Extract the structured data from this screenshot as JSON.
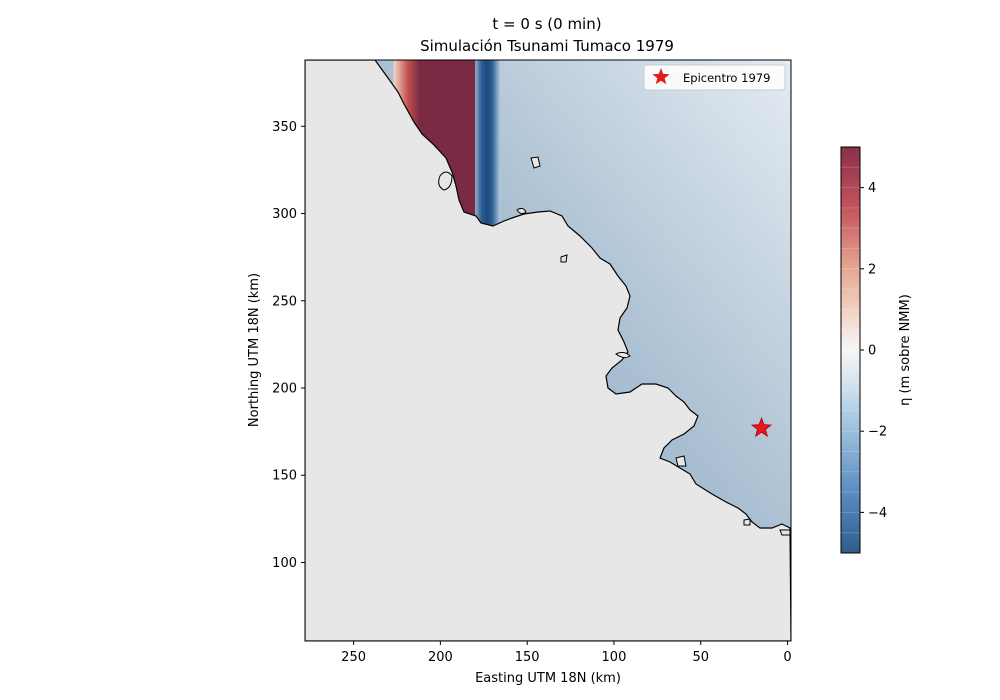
{
  "chart_data": {
    "type": "heatmap",
    "title": "t = 0 s (0 min)",
    "subtitle": "Simulación Tsunami Tumaco 1979",
    "xlabel": "Easting UTM 18N (km)",
    "ylabel": "Northing UTM 18N (km)",
    "xlim": [
      278,
      -2
    ],
    "ylim": [
      55,
      388
    ],
    "x_ticks": [
      250,
      200,
      150,
      100,
      50,
      0
    ],
    "y_ticks": [
      100,
      150,
      200,
      250,
      300,
      350
    ],
    "grid": false,
    "legend": {
      "position": "top-right",
      "entries": [
        "Epicentro 1979"
      ]
    },
    "epicenter": {
      "label": "Epicentro 1979",
      "x": 15,
      "y": 177,
      "color": "#e31a1c",
      "marker": "star"
    },
    "colorbar": {
      "label": "η (m sobre NMM)",
      "range": [
        -5,
        5
      ],
      "ticks": [
        -4,
        -2,
        0,
        2,
        4
      ],
      "tick_labels": [
        "−4",
        "−2",
        "0",
        "2",
        "4"
      ],
      "colormap": "RdBu_r"
    },
    "initial_wave": {
      "crest": {
        "x_range": [
          180,
          227
        ],
        "eta": 5
      },
      "trough": {
        "x_range": [
          170,
          180
        ],
        "eta": -5
      }
    },
    "colors": {
      "land": "#e7e7e7",
      "ocean": "#9fb4c7",
      "coastline": "#000000"
    }
  }
}
